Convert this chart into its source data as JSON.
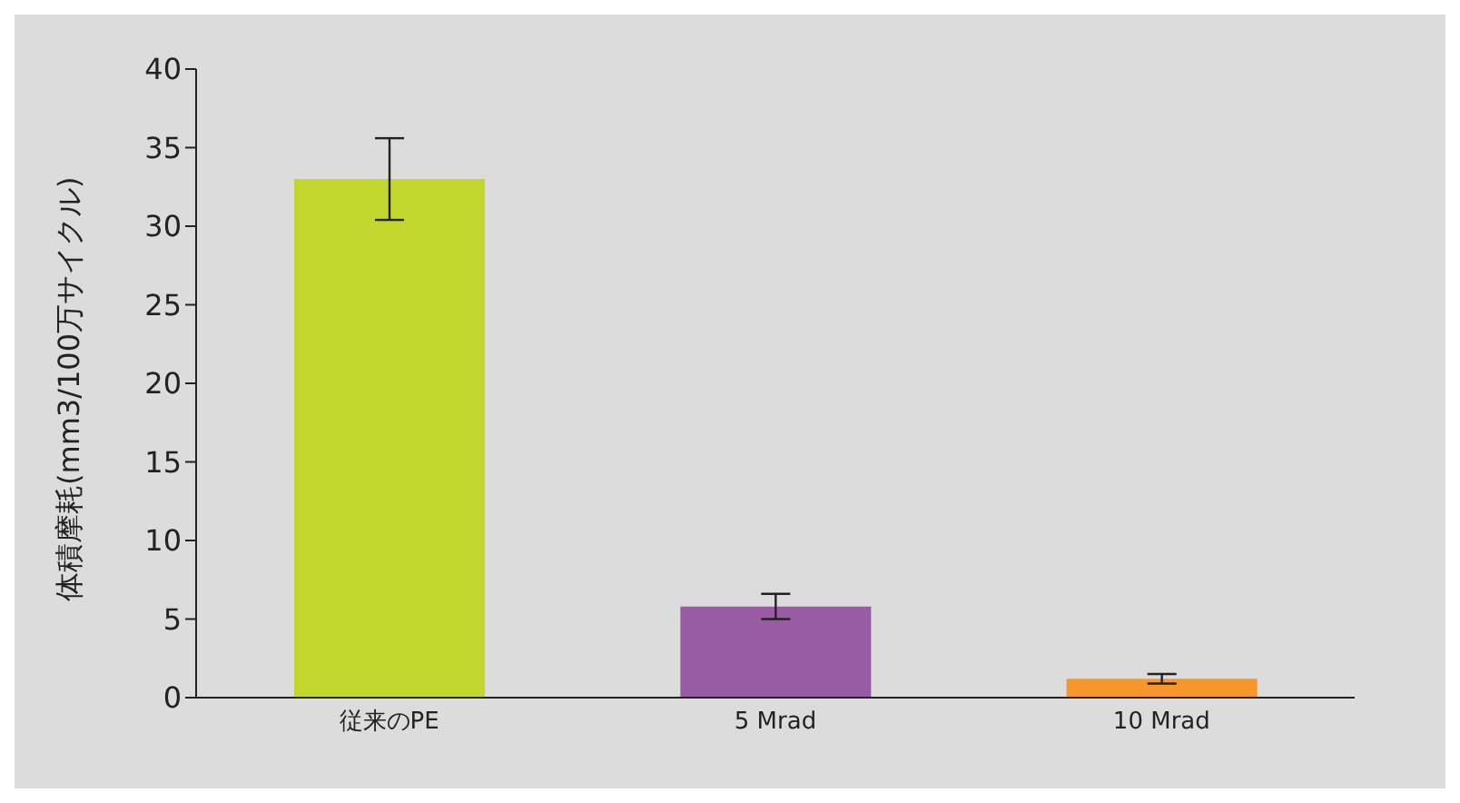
{
  "chart_data": {
    "type": "bar",
    "ylabel": "体積摩耗(mm3/100万サイクル)",
    "categories": [
      "従来のPE",
      "5 Mrad",
      "10 Mrad"
    ],
    "values": [
      33,
      5.8,
      1.2
    ],
    "colors": [
      "#c2d62e",
      "#995ba3",
      "#f7962a"
    ],
    "errors": [
      2.6,
      0.8,
      0.3
    ],
    "ylim": [
      0,
      40
    ],
    "yticks": [
      0,
      5,
      10,
      15,
      20,
      25,
      30,
      35,
      40
    ],
    "grid": false,
    "legend": false
  }
}
